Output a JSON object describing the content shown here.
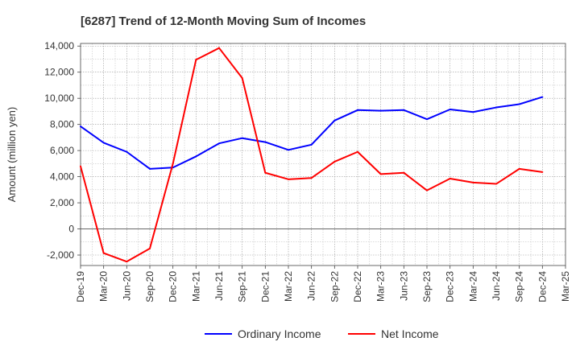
{
  "chart_data": {
    "type": "line",
    "title": "[6287]  Trend of 12-Month Moving Sum of Incomes",
    "xlabel": "",
    "ylabel": "Amount (million yen)",
    "ylim": [
      -2800,
      14200
    ],
    "yticks": [
      14000,
      12000,
      10000,
      8000,
      6000,
      4000,
      2000,
      0,
      -2000
    ],
    "ytick_labels": [
      "14,000",
      "12,000",
      "10,000",
      "8,000",
      "6,000",
      "4,000",
      "2,000",
      "0",
      "-2,000"
    ],
    "categories": [
      "Dec-19",
      "Mar-20",
      "Jun-20",
      "Sep-20",
      "Dec-20",
      "Mar-21",
      "Jun-21",
      "Sep-21",
      "Dec-21",
      "Mar-22",
      "Jun-22",
      "Sep-22",
      "Dec-22",
      "Mar-23",
      "Jun-23",
      "Sep-23",
      "Dec-23",
      "Mar-24",
      "Jun-24",
      "Sep-24",
      "Dec-24",
      "Mar-25"
    ],
    "grid": true,
    "legend_position": "bottom",
    "series": [
      {
        "name": "Ordinary Income",
        "color": "#0000ff",
        "values": [
          7850,
          6600,
          5900,
          4600,
          4700,
          5550,
          6550,
          6950,
          6650,
          6050,
          6450,
          8300,
          9100,
          9050,
          9100,
          8400,
          9150,
          8950,
          9300,
          9550,
          10100,
          null
        ]
      },
      {
        "name": "Net Income",
        "color": "#ff0000",
        "values": [
          4800,
          -1850,
          -2500,
          -1500,
          5000,
          12950,
          13850,
          11550,
          4300,
          3800,
          3900,
          5150,
          5900,
          4200,
          4300,
          2950,
          3850,
          3550,
          3450,
          4600,
          4350,
          null
        ]
      }
    ]
  }
}
